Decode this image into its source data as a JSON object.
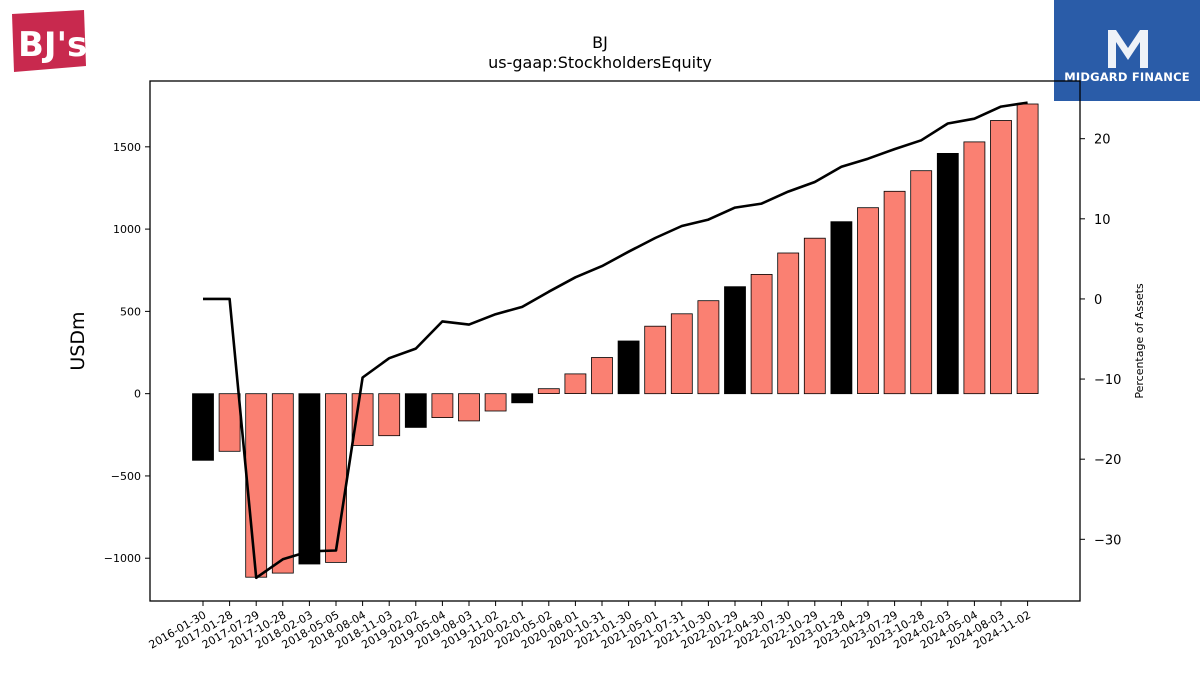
{
  "header": {
    "title": "BJ",
    "subtitle": "us-gaap:StockholdersEquity"
  },
  "logos": {
    "left_brand": "BJ's",
    "right_brand": "MIDGARD FINANCE"
  },
  "colors": {
    "bar_default": "#fa8072",
    "bar_highlight": "#000000",
    "line": "#000000",
    "logo_red": "#c8294e",
    "logo_blue": "#2a5ca8"
  },
  "chart_data": {
    "type": "bar",
    "title": "BJ",
    "subtitle": "us-gaap:StockholdersEquity",
    "ylabel": "USDm",
    "y2label": "Percentage of Assets",
    "ylim": [
      -1260,
      1900
    ],
    "y2lim": [
      -37.7,
      27.2
    ],
    "yticks": [
      -1000,
      -500,
      0,
      500,
      1000,
      1500
    ],
    "y2ticks": [
      -30,
      -20,
      -10,
      0,
      10,
      20
    ],
    "grid": false,
    "categories": [
      "2016-01-30",
      "2017-01-28",
      "2017-07-29",
      "2017-10-28",
      "2018-02-03",
      "2018-05-05",
      "2018-08-04",
      "2018-11-03",
      "2019-02-02",
      "2019-05-04",
      "2019-08-03",
      "2019-11-02",
      "2020-02-01",
      "2020-05-02",
      "2020-08-01",
      "2020-10-31",
      "2021-01-30",
      "2021-05-01",
      "2021-07-31",
      "2021-10-30",
      "2022-01-29",
      "2022-04-30",
      "2022-07-30",
      "2022-10-29",
      "2023-01-28",
      "2023-04-29",
      "2023-07-29",
      "2023-10-28",
      "2024-02-03",
      "2024-05-04",
      "2024-08-03",
      "2024-11-02"
    ],
    "series": [
      {
        "kind": "bar",
        "axis": "left",
        "values": [
          -405,
          -350,
          -1115,
          -1090,
          -1035,
          -1025,
          -315,
          -255,
          -205,
          -145,
          -165,
          -105,
          -55,
          30,
          120,
          220,
          320,
          410,
          485,
          565,
          650,
          725,
          855,
          945,
          1045,
          1130,
          1230,
          1355,
          1460,
          1530,
          1660,
          1760
        ],
        "highlighted_indices": [
          0,
          4,
          8,
          12,
          16,
          20,
          24,
          28
        ]
      },
      {
        "kind": "line",
        "axis": "right",
        "values": [
          0,
          0,
          -34.8,
          -32.5,
          -31.5,
          -31.4,
          -9.8,
          -7.4,
          -6.2,
          -2.8,
          -3.2,
          -1.9,
          -1.0,
          0.9,
          2.7,
          4.1,
          5.9,
          7.6,
          9.1,
          9.9,
          11.4,
          11.9,
          13.4,
          14.6,
          16.5,
          17.5,
          18.7,
          19.8,
          21.9,
          22.5,
          24.0,
          24.5
        ]
      }
    ]
  }
}
